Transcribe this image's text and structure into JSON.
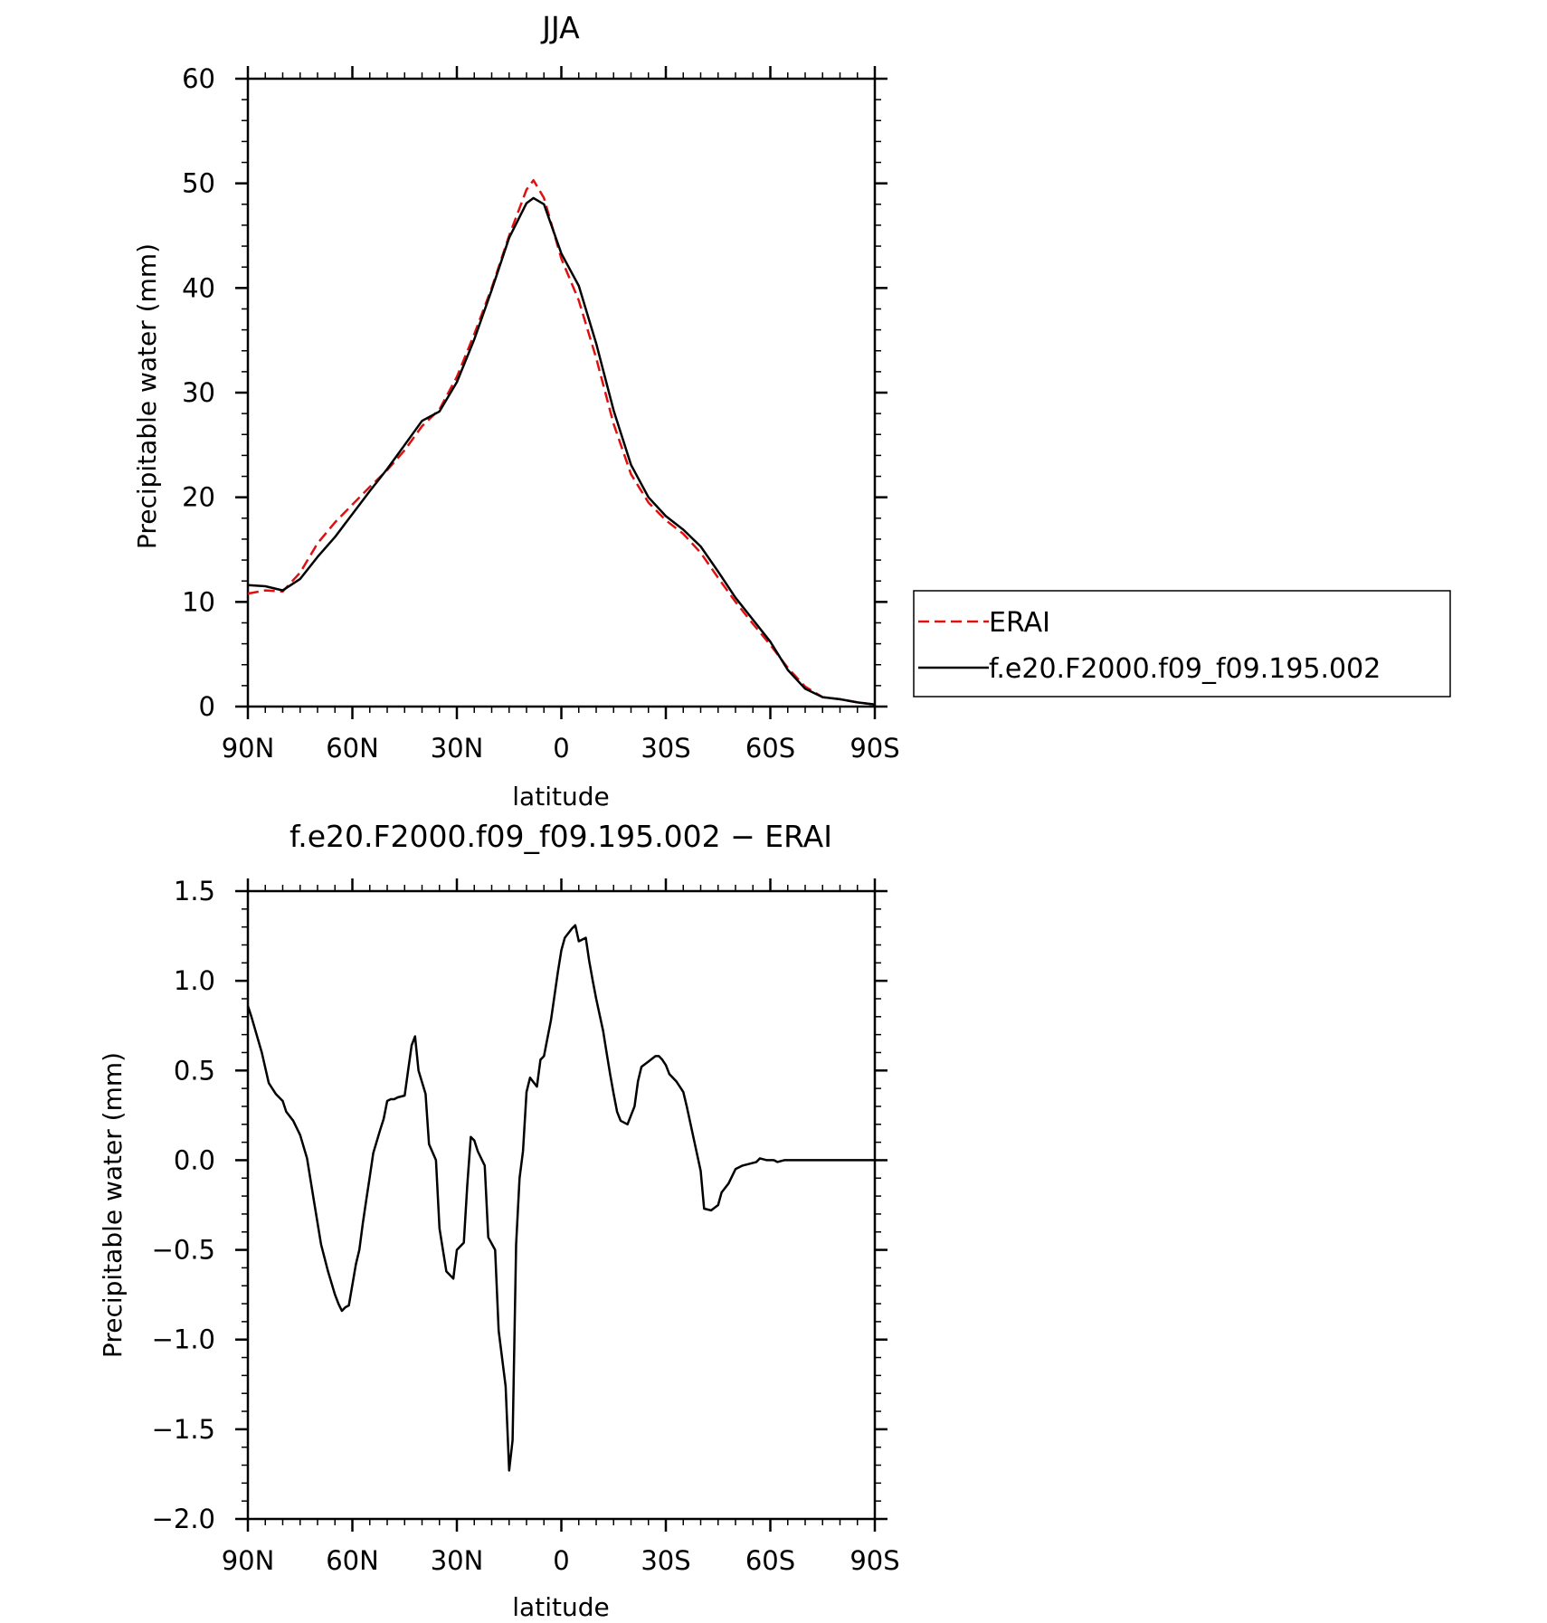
{
  "chart_data": [
    {
      "type": "line",
      "title": "JJA",
      "xlabel": "latitude",
      "ylabel": "Precipitable water (mm)",
      "xlim": [
        90,
        -90
      ],
      "ylim": [
        0,
        60
      ],
      "x_ticks": [
        90,
        60,
        30,
        0,
        -30,
        -60,
        -90
      ],
      "x_tick_labels": [
        "90N",
        "60N",
        "30N",
        "0",
        "30S",
        "60S",
        "90S"
      ],
      "y_ticks": [
        0,
        10,
        20,
        30,
        40,
        50,
        60
      ],
      "y_tick_labels": [
        "0",
        "10",
        "20",
        "30",
        "40",
        "50",
        "60"
      ],
      "legend_position": "right",
      "series": [
        {
          "name": "ERAI",
          "color": "#e01010",
          "dash": true,
          "x": [
            90,
            85,
            80,
            75,
            70,
            65,
            60,
            55,
            50,
            45,
            40,
            35,
            30,
            25,
            20,
            15,
            10,
            8,
            5,
            0,
            -5,
            -10,
            -15,
            -20,
            -25,
            -30,
            -35,
            -40,
            -45,
            -50,
            -55,
            -60,
            -65,
            -70,
            -75,
            -80,
            -85,
            -90
          ],
          "values": [
            10.8,
            11.1,
            11.0,
            12.8,
            15.6,
            17.6,
            19.3,
            21.0,
            22.6,
            24.5,
            26.8,
            28.4,
            31.5,
            35.6,
            40.0,
            45.0,
            49.4,
            50.3,
            48.6,
            42.8,
            38.8,
            33.3,
            27.0,
            22.2,
            19.5,
            17.8,
            16.5,
            14.7,
            12.3,
            10.0,
            7.9,
            5.9,
            3.7,
            1.9,
            0.9,
            0.7,
            0.4,
            0.2
          ]
        },
        {
          "name": "f.e20.F2000.f09_f09.195.002",
          "color": "#000000",
          "dash": false,
          "x": [
            90,
            85,
            80,
            75,
            70,
            65,
            60,
            55,
            50,
            45,
            40,
            35,
            30,
            25,
            20,
            15,
            10,
            8,
            5,
            0,
            -5,
            -10,
            -15,
            -20,
            -25,
            -30,
            -35,
            -40,
            -45,
            -50,
            -55,
            -60,
            -65,
            -70,
            -75,
            -80,
            -85,
            -90
          ],
          "values": [
            11.6,
            11.5,
            11.1,
            12.2,
            14.3,
            16.2,
            18.4,
            20.6,
            22.7,
            25.0,
            27.3,
            28.2,
            31.0,
            35.1,
            39.8,
            44.8,
            48.1,
            48.6,
            48.0,
            43.3,
            40.2,
            34.7,
            28.3,
            23.1,
            20.0,
            18.2,
            16.9,
            15.3,
            12.9,
            10.4,
            8.3,
            6.2,
            3.5,
            1.7,
            0.9,
            0.7,
            0.4,
            0.2
          ]
        }
      ]
    },
    {
      "type": "line",
      "title": "f.e20.F2000.f09_f09.195.002 − ERAI",
      "xlabel": "latitude",
      "ylabel": "Precipitable water (mm)",
      "xlim": [
        90,
        -90
      ],
      "ylim": [
        -2.0,
        1.5
      ],
      "x_ticks": [
        90,
        60,
        30,
        0,
        -30,
        -60,
        -90
      ],
      "x_tick_labels": [
        "90N",
        "60N",
        "30N",
        "0",
        "30S",
        "60S",
        "90S"
      ],
      "y_ticks": [
        1.5,
        1.0,
        0.5,
        0.0,
        -0.5,
        -1.0,
        -1.5,
        -2.0
      ],
      "y_tick_labels": [
        "1.5",
        "1.0",
        "0.5",
        "0.0",
        "−0.5",
        "−1.0",
        "−1.5",
        "−2.0"
      ],
      "series": [
        {
          "name": "",
          "color": "#000000",
          "dash": false,
          "x": [
            90,
            89,
            86,
            84,
            82,
            80,
            79,
            77,
            75,
            73,
            71,
            69,
            67,
            65,
            64,
            63,
            62,
            61,
            59,
            58,
            57,
            56,
            55,
            54,
            52,
            51,
            50,
            49,
            48,
            47,
            45,
            44,
            43,
            42,
            41,
            39,
            38,
            36,
            35,
            33,
            31,
            30,
            28,
            27,
            26,
            25,
            24,
            22,
            21,
            19,
            18,
            16,
            15,
            14,
            13,
            12,
            11,
            10,
            9,
            7,
            6,
            5,
            4,
            3,
            1,
            0,
            -1,
            -3,
            -4,
            -5,
            -7,
            -8,
            -9,
            -10,
            -12,
            -13,
            -14,
            -15,
            -16,
            -17,
            -19,
            -21,
            -22,
            -23,
            -25,
            -27,
            -28,
            -29,
            -30,
            -31,
            -33,
            -34,
            -35,
            -36,
            -38,
            -40,
            -41,
            -43,
            -45,
            -46,
            -48,
            -50,
            -52,
            -54,
            -56,
            -57,
            -59,
            -61,
            -62,
            -64,
            -65,
            -66,
            -67,
            -68,
            -69,
            -70,
            -71,
            -72,
            -73,
            -75,
            -76,
            -77,
            -79,
            -80,
            -82,
            -84,
            -85,
            -86,
            -87,
            -89,
            -90
          ],
          "values": [
            0.86,
            0.8,
            0.6,
            0.43,
            0.37,
            0.33,
            0.27,
            0.22,
            0.14,
            0.01,
            -0.23,
            -0.47,
            -0.62,
            -0.75,
            -0.8,
            -0.84,
            -0.82,
            -0.81,
            -0.58,
            -0.5,
            -0.35,
            -0.22,
            -0.09,
            0.04,
            0.17,
            0.23,
            0.33,
            0.34,
            0.34,
            0.35,
            0.36,
            0.5,
            0.64,
            0.69,
            0.5,
            0.37,
            0.09,
            0.0,
            -0.38,
            -0.62,
            -0.66,
            -0.5,
            -0.46,
            -0.14,
            0.13,
            0.11,
            0.05,
            -0.03,
            -0.43,
            -0.5,
            -0.95,
            -1.26,
            -1.73,
            -1.56,
            -0.47,
            -0.1,
            0.05,
            0.38,
            0.46,
            0.41,
            0.56,
            0.58,
            0.68,
            0.78,
            1.05,
            1.17,
            1.24,
            1.29,
            1.31,
            1.22,
            1.24,
            1.11,
            1.0,
            0.9,
            0.72,
            0.6,
            0.48,
            0.37,
            0.27,
            0.22,
            0.2,
            0.3,
            0.44,
            0.52,
            0.55,
            0.58,
            0.58,
            0.56,
            0.53,
            0.48,
            0.44,
            0.41,
            0.38,
            0.3,
            0.12,
            -0.06,
            -0.27,
            -0.28,
            -0.25,
            -0.18,
            -0.13,
            -0.05,
            -0.03,
            -0.02,
            -0.01,
            0.01,
            0.0,
            0.0,
            -0.01,
            0.0,
            0.0,
            0.0,
            0.0,
            0.0,
            0.0,
            0.0,
            0.0,
            0.0,
            0.0,
            0.0,
            0.0,
            0.0,
            0.0,
            0.0,
            0.0,
            0.0,
            0.0,
            0.0,
            0.0,
            0.0,
            0.0
          ]
        }
      ]
    }
  ]
}
